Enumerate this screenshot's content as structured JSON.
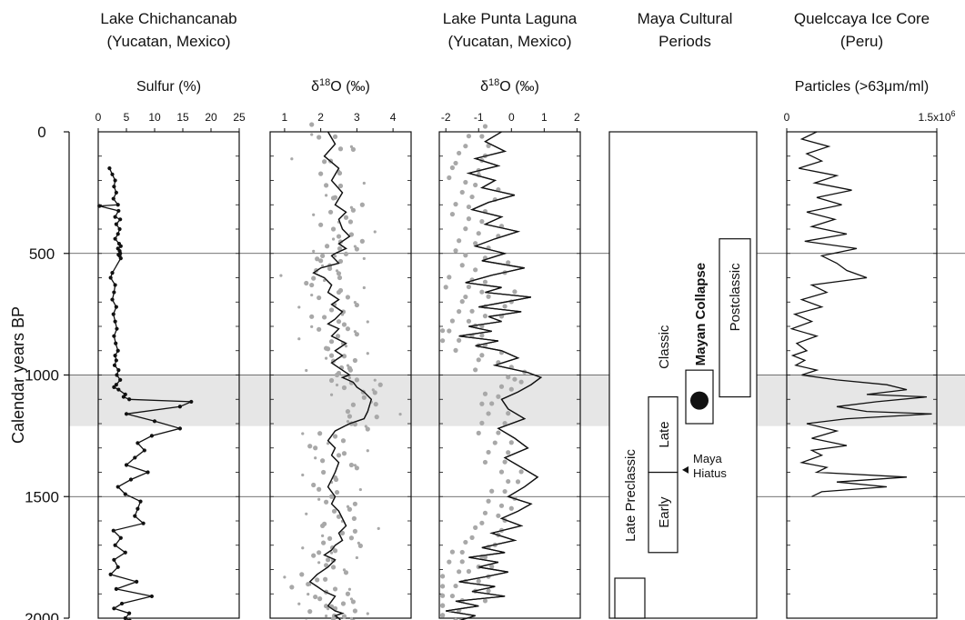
{
  "figure": {
    "y_axis": {
      "label": "Calendar years BP",
      "ticks": [
        0,
        500,
        1000,
        1500,
        2000
      ],
      "range": [
        0,
        2000
      ],
      "gridlines": [
        500,
        1500
      ]
    },
    "shaded_interval": [
      1000,
      1210
    ]
  },
  "chart_data": [
    {
      "type": "line",
      "site": "Lake Chichancanab\n(Yucatan, Mexico)",
      "xlabel": "Sulfur (%)",
      "xticks": [
        "0",
        "5",
        "10",
        "15",
        "20",
        "25"
      ],
      "xlim": [
        0,
        25
      ],
      "series": [
        {
          "markers": "dots",
          "x": [
            2.0,
            2.5,
            3.0,
            2.8,
            3.2,
            2.7,
            3.5,
            0.2,
            3.6,
            3.0,
            3.9,
            3.2,
            3.8,
            3.5,
            3.0,
            3.7,
            4.0,
            3.5,
            3.8,
            3.9,
            3.6,
            3.8,
            4.0,
            2.5,
            2.2,
            3.0,
            2.8,
            2.5,
            3.2,
            2.7,
            3.0,
            3.3,
            2.8,
            3.1,
            3.5,
            3.0,
            3.2,
            2.9,
            3.6,
            3.3,
            3.9,
            3.2,
            2.8,
            3.6,
            4.8,
            4.5,
            5.5,
            16.5,
            14.5,
            5.0,
            10.0,
            14.5,
            9.5,
            7.0,
            8.2,
            6.5,
            5.0,
            8.8,
            5.8,
            3.5,
            4.8,
            7.5,
            7.0,
            6.5,
            8.0,
            2.7,
            4.0,
            3.0,
            4.8,
            2.8,
            3.5,
            2.2,
            6.8,
            3.2,
            9.5,
            4.2,
            2.8,
            5.5,
            4.8,
            5.6,
            6.0
          ],
          "y": [
            150,
            175,
            200,
            225,
            250,
            275,
            300,
            305,
            325,
            350,
            360,
            380,
            400,
            420,
            440,
            460,
            470,
            480,
            490,
            500,
            505,
            510,
            520,
            580,
            600,
            630,
            660,
            690,
            720,
            750,
            780,
            810,
            840,
            870,
            900,
            920,
            940,
            960,
            980,
            1000,
            1020,
            1040,
            1050,
            1060,
            1080,
            1090,
            1100,
            1110,
            1130,
            1160,
            1190,
            1220,
            1250,
            1280,
            1310,
            1340,
            1370,
            1400,
            1430,
            1460,
            1490,
            1520,
            1550,
            1580,
            1610,
            1640,
            1670,
            1700,
            1730,
            1760,
            1790,
            1820,
            1850,
            1880,
            1910,
            1940,
            1960,
            1980,
            2000,
            2010,
            2020
          ]
        }
      ]
    },
    {
      "type": "line",
      "site": "",
      "xlabel": "δ18O (‰)",
      "xticks": [
        "1",
        "2",
        "3",
        "4"
      ],
      "xlim": [
        0.6,
        4.5
      ],
      "series": [
        {
          "x": [
            2.2,
            2.4,
            2.1,
            2.5,
            2.3,
            2.6,
            2.4,
            2.7,
            2.5,
            2.6,
            2.8,
            2.5,
            2.7,
            2.4,
            2.3,
            2.5,
            2.0,
            1.8,
            2.1,
            2.3,
            2.2,
            2.5,
            2.3,
            2.6,
            2.4,
            2.2,
            2.5,
            2.3,
            2.7,
            2.4,
            2.6,
            2.3,
            2.5,
            2.8,
            2.6,
            2.9,
            3.0,
            3.2,
            3.4,
            3.3,
            3.2,
            2.8,
            2.4,
            2.2,
            2.4,
            2.3,
            2.5,
            2.4,
            2.3,
            2.2,
            2.4,
            2.3,
            2.5,
            2.6,
            2.7,
            2.5,
            2.6,
            2.4,
            2.3,
            2.1,
            2.4,
            2.2,
            1.9,
            1.7,
            1.9,
            2.1,
            2.4,
            2.3,
            2.2,
            2.4,
            2.6,
            2.4,
            2.5,
            2.6
          ],
          "y": [
            0,
            50,
            100,
            150,
            200,
            250,
            300,
            330,
            360,
            400,
            430,
            460,
            480,
            500,
            510,
            540,
            560,
            580,
            600,
            630,
            660,
            690,
            710,
            740,
            770,
            790,
            810,
            840,
            870,
            900,
            920,
            950,
            970,
            1000,
            1010,
            1030,
            1050,
            1070,
            1100,
            1150,
            1180,
            1200,
            1230,
            1270,
            1300,
            1330,
            1360,
            1400,
            1430,
            1460,
            1500,
            1530,
            1560,
            1590,
            1620,
            1650,
            1680,
            1700,
            1720,
            1740,
            1760,
            1790,
            1820,
            1850,
            1870,
            1890,
            1910,
            1930,
            1950,
            1970,
            1980,
            1990,
            2000,
            2020
          ]
        }
      ]
    },
    {
      "type": "line",
      "site": "Lake Punta Laguna\n(Yucatan, Mexico)",
      "xlabel": "δ18O (‰)",
      "xticks": [
        "-2",
        "-1",
        "0",
        "1",
        "2"
      ],
      "xlim": [
        -2.2,
        2.1
      ],
      "series": [
        {
          "x": [
            -0.3,
            -0.8,
            -0.2,
            -1.1,
            -0.4,
            -1.3,
            -0.5,
            -0.9,
            0.1,
            -0.7,
            -1.2,
            -0.3,
            -0.8,
            0.2,
            -0.5,
            -1.1,
            -0.2,
            -0.9,
            0.4,
            -0.6,
            -1.4,
            -0.3,
            -0.8,
            0.6,
            -0.2,
            -1.0,
            0.3,
            -0.7,
            -0.3,
            -1.3,
            -0.6,
            -1.6,
            -0.4,
            -1.1,
            -0.3,
            0.2,
            -0.5,
            0.5,
            0.9,
            0.6,
            0.2,
            -0.3,
            -0.1,
            0.4,
            -0.4,
            0.1,
            0.5,
            -0.2,
            0.3,
            0.8,
            0.4,
            -0.1,
            0.6,
            0.2,
            -0.3,
            0.3,
            -0.6,
            0.1,
            -0.9,
            -0.2,
            -1.3,
            -0.4,
            -1.0,
            -0.1,
            -0.8,
            -1.6,
            -0.5,
            -1.2,
            -0.2,
            -1.7,
            -1.0,
            -2.0,
            -1.1,
            -1.6
          ],
          "y": [
            0,
            40,
            80,
            110,
            140,
            170,
            200,
            230,
            260,
            290,
            320,
            350,
            380,
            410,
            440,
            470,
            500,
            530,
            560,
            590,
            620,
            640,
            660,
            680,
            700,
            720,
            740,
            760,
            780,
            800,
            820,
            840,
            860,
            880,
            900,
            930,
            960,
            990,
            1010,
            1040,
            1070,
            1100,
            1140,
            1180,
            1220,
            1260,
            1300,
            1340,
            1380,
            1420,
            1460,
            1500,
            1530,
            1560,
            1590,
            1620,
            1650,
            1680,
            1710,
            1730,
            1750,
            1770,
            1790,
            1810,
            1830,
            1850,
            1870,
            1890,
            1910,
            1930,
            1950,
            1970,
            1990,
            2010
          ]
        }
      ]
    },
    {
      "type": "table",
      "site": "Maya Cultural\nPeriods",
      "xlabel": "",
      "periods": [
        {
          "label": "Mayan Collapse",
          "bold": true
        },
        {
          "label": "Postclassic"
        },
        {
          "label": "Classic"
        },
        {
          "label": "Late"
        },
        {
          "label": "Early"
        },
        {
          "label": "Late Preclassic"
        }
      ],
      "annotation": "Maya\nHiatus"
    },
    {
      "type": "line",
      "site": "Quelccaya Ice Core\n(Peru)",
      "xlabel": "Particles (>63μm/ml)",
      "xticks": [
        "0",
        "1.5x10⁶"
      ],
      "xlim": [
        0,
        1500000
      ],
      "series": [
        {
          "x": [
            300000,
            150000,
            420000,
            200000,
            350000,
            120000,
            500000,
            280000,
            650000,
            300000,
            550000,
            200000,
            480000,
            250000,
            600000,
            180000,
            700000,
            350000,
            500000,
            600000,
            800000,
            250000,
            400000,
            150000,
            350000,
            80000,
            250000,
            50000,
            300000,
            100000,
            200000,
            60000,
            180000,
            90000,
            300000,
            150000,
            500000,
            1000000,
            1200000,
            800000,
            1400000,
            900000,
            500000,
            800000,
            1450000,
            600000,
            200000,
            500000,
            250000,
            600000,
            250000,
            350000,
            150000,
            400000,
            300000,
            1200000,
            500000,
            1000000,
            350000,
            250000
          ],
          "y": [
            0,
            30,
            60,
            90,
            120,
            150,
            180,
            210,
            240,
            270,
            300,
            330,
            360,
            390,
            420,
            450,
            480,
            510,
            540,
            570,
            600,
            630,
            660,
            690,
            720,
            750,
            780,
            810,
            840,
            870,
            900,
            920,
            940,
            960,
            980,
            1000,
            1020,
            1040,
            1060,
            1080,
            1090,
            1110,
            1130,
            1150,
            1160,
            1180,
            1200,
            1230,
            1260,
            1290,
            1310,
            1330,
            1360,
            1380,
            1400,
            1420,
            1440,
            1460,
            1480,
            1500
          ]
        }
      ]
    }
  ]
}
